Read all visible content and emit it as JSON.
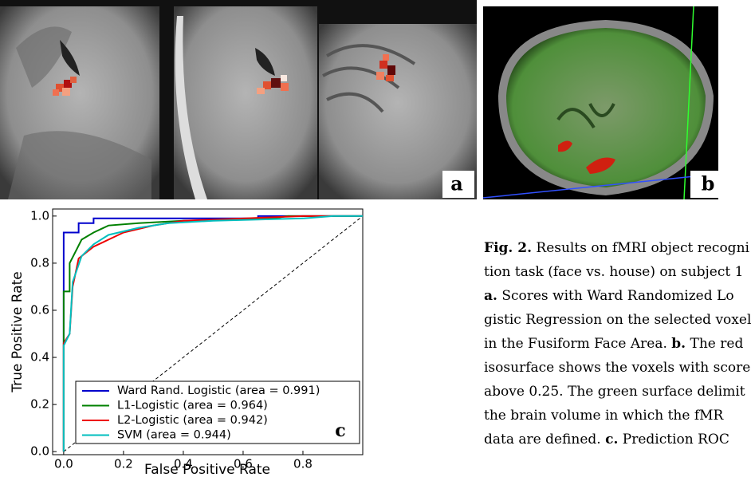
{
  "panels": {
    "a": "a",
    "b": "b"
  },
  "chart_data": {
    "type": "line",
    "xlabel": "False Positive Rate",
    "ylabel": "True Positive Rate",
    "panel_label": "c",
    "xlim": [
      -0.037,
      1.0
    ],
    "ylim": [
      -0.013,
      1.03
    ],
    "xticks": [
      {
        "value": 0,
        "label": "0.0"
      },
      0.2,
      0.4,
      0.6,
      0.8
    ],
    "yticks": [
      {
        "value": 0,
        "label": "0.0"
      },
      0.2,
      0.4,
      0.6,
      0.8,
      {
        "value": 1,
        "label": "1.0"
      }
    ],
    "legend": "lower right",
    "diagonal": true,
    "series": [
      {
        "name": "Ward Rand. Logistic (area = 0.991)",
        "color": "#0000cc",
        "x": [
          0,
          0,
          0.05,
          0.05,
          0.1,
          0.1,
          0.65,
          0.65,
          1
        ],
        "values": [
          0,
          0.93,
          0.93,
          0.97,
          0.97,
          0.99,
          0.99,
          1,
          1
        ]
      },
      {
        "name": "L1-Logistic (area = 0.964)",
        "color": "#008000",
        "x": [
          0,
          0,
          0.02,
          0.02,
          0.04,
          0.06,
          0.1,
          0.15,
          0.25,
          0.4,
          0.7,
          0.75,
          1
        ],
        "values": [
          0,
          0.68,
          0.68,
          0.8,
          0.85,
          0.9,
          0.93,
          0.96,
          0.97,
          0.98,
          0.99,
          1,
          1
        ]
      },
      {
        "name": "L2-Logistic (area = 0.942)",
        "color": "#ee0000",
        "x": [
          0,
          0,
          0.02,
          0.03,
          0.05,
          0.1,
          0.15,
          0.2,
          0.3,
          0.4,
          0.6,
          0.8,
          1
        ],
        "values": [
          0,
          0.46,
          0.5,
          0.7,
          0.82,
          0.87,
          0.9,
          0.93,
          0.96,
          0.98,
          0.99,
          1,
          1
        ]
      },
      {
        "name": "SVM (area = 0.944)",
        "color": "#00bfbf",
        "x": [
          0,
          0,
          0.02,
          0.03,
          0.06,
          0.1,
          0.15,
          0.25,
          0.35,
          0.5,
          0.8,
          0.9,
          1
        ],
        "values": [
          0,
          0.45,
          0.5,
          0.72,
          0.83,
          0.88,
          0.92,
          0.95,
          0.97,
          0.98,
          0.99,
          1,
          1
        ]
      }
    ]
  },
  "caption": {
    "lines": [
      [
        {
          "b": "Fig. 2."
        },
        " Results on fMRI object recogni"
      ],
      [
        "tion task (face vs. house) on subject 1"
      ],
      [
        {
          "b": "a."
        },
        " Scores with Ward Randomized Lo"
      ],
      [
        "gistic Regression on the selected voxel"
      ],
      [
        "in the Fusiform Face Area. ",
        {
          "b": "b."
        },
        " The red"
      ],
      [
        "isosurface shows the voxels with score"
      ],
      [
        "above 0.25. The green surface delimit"
      ],
      [
        "the brain volume in which the fMR"
      ],
      [
        "data are defined. ",
        {
          "b": "c."
        },
        " Prediction ROC"
      ]
    ]
  }
}
